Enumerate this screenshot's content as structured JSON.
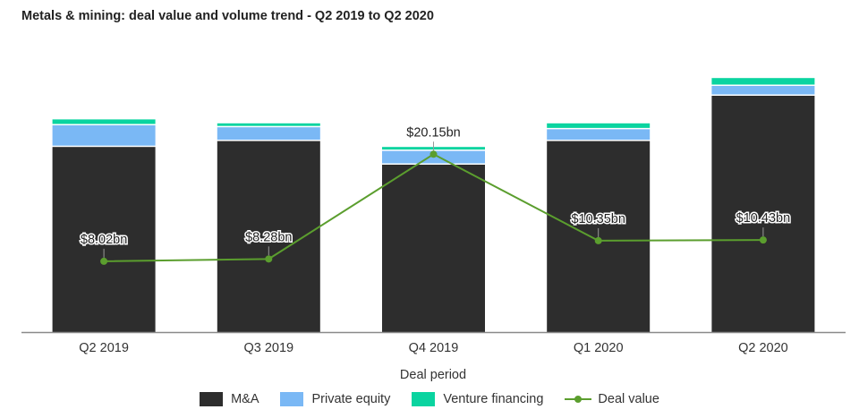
{
  "chart_data": {
    "type": "bar",
    "subtype": "stacked-bar-with-line",
    "title": "Metals & mining: deal value and volume trend - Q2 2019 to Q2 2020",
    "xlabel": "Deal period",
    "ylabel": "",
    "grid": false,
    "legend_position": "bottom",
    "categories": [
      "Q2 2019",
      "Q3 2019",
      "Q4 2019",
      "Q1 2020",
      "Q2 2020"
    ],
    "bar_axis": {
      "label": "Deal volume (estimated, axis hidden)",
      "ylim": [
        0,
        130
      ]
    },
    "series": [
      {
        "name": "M&A",
        "kind": "bar",
        "color": "#2d2d2d",
        "values": [
          94,
          97,
          85,
          97,
          120
        ]
      },
      {
        "name": "Private equity",
        "kind": "bar",
        "color": "#7ab8f5",
        "values": [
          11,
          7,
          7,
          6,
          5
        ]
      },
      {
        "name": "Venture financing",
        "kind": "bar",
        "color": "#0ad4a0",
        "values": [
          3,
          2,
          2,
          3,
          4
        ]
      },
      {
        "name": "Deal value",
        "kind": "line",
        "color": "#5b9e2e",
        "unit": "$bn",
        "values": [
          8.02,
          8.28,
          20.15,
          10.35,
          10.43
        ],
        "labels": [
          "$8.02bn",
          "$8.28bn",
          "$20.15bn",
          "$10.35bn",
          "$10.43bn"
        ],
        "ylim": [
          0,
          29
        ]
      }
    ]
  }
}
